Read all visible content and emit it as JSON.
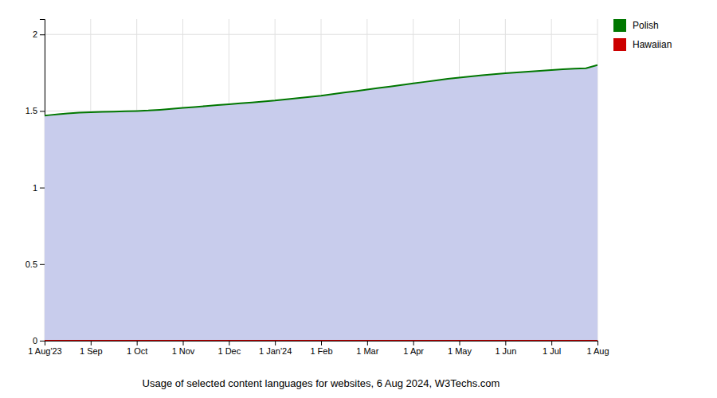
{
  "chart_data": {
    "type": "area",
    "title": "Usage of selected content languages for websites, 6 Aug 2024, W3Techs.com",
    "x": [
      0,
      0.1,
      0.3,
      0.5,
      0.75,
      1.0,
      1.25,
      1.5,
      1.75,
      2.0,
      2.25,
      2.5,
      2.75,
      3.0,
      3.25,
      3.5,
      3.75,
      4.0,
      4.25,
      4.5,
      4.75,
      5.0,
      5.25,
      5.5,
      5.75,
      6.0,
      6.25,
      6.5,
      6.75,
      7.0,
      7.25,
      7.5,
      7.75,
      8.0,
      8.25,
      8.5,
      8.75,
      9.0,
      9.25,
      9.5,
      9.75,
      10.0,
      10.25,
      10.5,
      10.75,
      11.0,
      11.25,
      11.5,
      11.75,
      12.0
    ],
    "series": [
      {
        "name": "Polish",
        "color": "#007700",
        "values": [
          1.47,
          1.473,
          1.479,
          1.484,
          1.489,
          1.492,
          1.494,
          1.496,
          1.498,
          1.5,
          1.503,
          1.508,
          1.514,
          1.52,
          1.526,
          1.532,
          1.538,
          1.544,
          1.55,
          1.556,
          1.562,
          1.568,
          1.576,
          1.584,
          1.592,
          1.6,
          1.61,
          1.62,
          1.63,
          1.64,
          1.65,
          1.66,
          1.67,
          1.68,
          1.69,
          1.7,
          1.71,
          1.718,
          1.726,
          1.733,
          1.74,
          1.746,
          1.752,
          1.757,
          1.762,
          1.767,
          1.772,
          1.776,
          1.779,
          1.8
        ]
      },
      {
        "name": "Hawaiian",
        "color": "#cc0000",
        "values": [
          0.0,
          0.0,
          0.0,
          0.0,
          0.0,
          0.0,
          0.0,
          0.0,
          0.0,
          0.0,
          0.0,
          0.0,
          0.0,
          0.0,
          0.0,
          0.0,
          0.0,
          0.0,
          0.0,
          0.0,
          0.0,
          0.0,
          0.0,
          0.0,
          0.0,
          0.0,
          0.0,
          0.0,
          0.0,
          0.0,
          0.0,
          0.0,
          0.0,
          0.0,
          0.0,
          0.0,
          0.0,
          0.0,
          0.0,
          0.0,
          0.0,
          0.0,
          0.0,
          0.0,
          0.0,
          0.0,
          0.0,
          0.0,
          0.0,
          0.0
        ]
      }
    ],
    "color": "#c8ccec",
    "xlim": [
      0,
      12
    ],
    "xticks": [
      {
        "value": 0,
        "label": "1 Aug'23"
      },
      {
        "value": 1,
        "label": "1 Sep"
      },
      {
        "value": 2,
        "label": "1 Oct"
      },
      {
        "value": 3,
        "label": "1 Nov"
      },
      {
        "value": 4,
        "label": "1 Dec"
      },
      {
        "value": 5,
        "label": "1 Jan'24"
      },
      {
        "value": 6,
        "label": "1 Feb"
      },
      {
        "value": 7,
        "label": "1 Mar"
      },
      {
        "value": 8,
        "label": "1 Apr"
      },
      {
        "value": 9,
        "label": "1 May"
      },
      {
        "value": 10,
        "label": "1 Jun"
      },
      {
        "value": 11,
        "label": "1 Jul"
      },
      {
        "value": 12,
        "label": "1 Aug"
      }
    ],
    "ylim": [
      0,
      2.1
    ],
    "yticks": [
      0,
      0.5,
      1,
      1.5,
      2
    ],
    "grid": true,
    "legend": "upper right"
  }
}
